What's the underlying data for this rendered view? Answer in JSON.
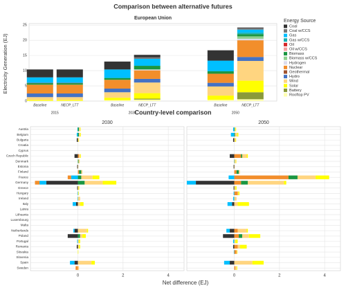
{
  "title": "Comparison between alternative futures",
  "chart_data": [
    {
      "type": "bar",
      "stacked": true,
      "title": "European Union",
      "ylabel": "Electricity Generation (EJ)",
      "legend_title": "Energy Source",
      "legend": "right",
      "grid": true,
      "groups": [
        2015,
        2030,
        2050
      ],
      "xlim": [
        2010,
        2058
      ],
      "categories": [
        "Baseline",
        "NECP_LTT",
        "Baseline",
        "NECP_LTT",
        "Baseline",
        "NECP_LTT"
      ],
      "ylim": [
        0,
        25.5
      ],
      "yticks": [
        0,
        5,
        10,
        15,
        20,
        25
      ],
      "series": [
        {
          "name": "Coal",
          "color": "#333333",
          "values": [
            2.6,
            2.6,
            2.6,
            0.8,
            3.4,
            0.2
          ]
        },
        {
          "name": "Coal w/CCS",
          "color": "#777777",
          "values": [
            0,
            0,
            0,
            0.5,
            0,
            0.5
          ]
        },
        {
          "name": "Gas",
          "color": "#00bfff",
          "values": [
            1.8,
            1.8,
            2.8,
            2.3,
            3.5,
            1.0
          ]
        },
        {
          "name": "Gas w/CCS",
          "color": "#1ab0b0",
          "values": [
            0,
            0,
            0,
            0,
            0,
            0.5
          ]
        },
        {
          "name": "Oil",
          "color": "#d62728",
          "values": [
            0.1,
            0.1,
            0,
            0,
            0,
            0
          ]
        },
        {
          "name": "Oil w/CCS",
          "color": "#f4a0a0",
          "values": [
            0,
            0,
            0,
            0,
            0,
            0
          ]
        },
        {
          "name": "Biomass",
          "color": "#1a9641",
          "values": [
            0.5,
            0.5,
            0.6,
            1.2,
            0.8,
            0.7
          ]
        },
        {
          "name": "Biomass w/CCS",
          "color": "#8fd18f",
          "values": [
            0,
            0,
            0,
            0,
            0,
            0.8
          ]
        },
        {
          "name": "Hydrogen",
          "color": "#dcdcec",
          "values": [
            0,
            0,
            0,
            0.3,
            0,
            0.5
          ]
        },
        {
          "name": "Nuclear",
          "color": "#f28e2b",
          "values": [
            2.9,
            2.9,
            2.9,
            2.8,
            3.0,
            5.5
          ]
        },
        {
          "name": "Geothermal",
          "color": "#a0522d",
          "values": [
            0,
            0,
            0,
            0,
            0,
            0
          ]
        },
        {
          "name": "Hydro",
          "color": "#4472c4",
          "values": [
            1.2,
            1.2,
            1.2,
            1.2,
            1.2,
            1.3
          ]
        },
        {
          "name": "Wind",
          "color": "#ffd580",
          "values": [
            0.9,
            0.9,
            1.8,
            3.5,
            3.0,
            6.5
          ]
        },
        {
          "name": "Solar",
          "color": "#ffff00",
          "values": [
            0.3,
            0.3,
            0.8,
            1.8,
            1.4,
            3.8
          ]
        },
        {
          "name": "Battery",
          "color": "#8a9a3a",
          "values": [
            0,
            0,
            0,
            0.3,
            0,
            2.3
          ]
        },
        {
          "name": "Rooftop PV",
          "color": "#ffffb0",
          "values": [
            0.1,
            0.1,
            0.3,
            0.5,
            0.4,
            0.6
          ]
        }
      ]
    },
    {
      "type": "bar",
      "orientation": "horizontal",
      "stacked": true,
      "title": "Country-level comparison",
      "xlabel": "Net difference (EJ)",
      "grid": true,
      "xlim": [
        -2.1,
        4.7
      ],
      "xticks": [
        0,
        2,
        4
      ],
      "categories": [
        "Austria",
        "Belgium",
        "Bulgaria",
        "Croatia",
        "Cyprus",
        "Czech Republic",
        "Denmark",
        "Estonia",
        "Finland",
        "France",
        "Germany",
        "Greece",
        "Hungary",
        "Ireland",
        "Italy",
        "Latvia",
        "Lithuania",
        "Luxembourg",
        "Malta",
        "Netherlands",
        "Poland",
        "Portugal",
        "Romania",
        "Slovakia",
        "Slovenia",
        "Spain",
        "Sweden"
      ],
      "facets": [
        {
          "title": "2030",
          "series": [
            {
              "color": "#333333",
              "values": [
                0,
                0,
                -0.05,
                0,
                0,
                -0.15,
                0,
                -0.03,
                0,
                0,
                -1.4,
                -0.03,
                0,
                0,
                -0.08,
                0,
                0,
                0,
                0,
                -0.15,
                -0.45,
                0,
                -0.05,
                0,
                0,
                -0.15,
                0
              ]
            },
            {
              "color": "#00bfff",
              "values": [
                -0.02,
                -0.05,
                0,
                0,
                0,
                0,
                0,
                0,
                0,
                -0.3,
                -0.3,
                0,
                -0.02,
                -0.02,
                -0.15,
                0,
                0,
                0,
                0,
                -0.05,
                0,
                -0.03,
                0,
                0,
                0,
                -0.2,
                0
              ]
            },
            {
              "color": "#f28e2b",
              "values": [
                0,
                0,
                0,
                0,
                0,
                0.05,
                0,
                0,
                0.05,
                -0.15,
                -0.2,
                0,
                0,
                0,
                0,
                0,
                0,
                0,
                0,
                0,
                0,
                0,
                0,
                0,
                0,
                0,
                -0.1
              ]
            },
            {
              "color": "#1a9641",
              "values": [
                0.05,
                0.05,
                0,
                0,
                0,
                0,
                0.03,
                0,
                0.1,
                0.15,
                0.3,
                0,
                0,
                0,
                0,
                0,
                0,
                0,
                0,
                0,
                0.1,
                0,
                0,
                0,
                0,
                0,
                0
              ]
            },
            {
              "color": "#ffd580",
              "values": [
                0.05,
                0.05,
                0.03,
                0,
                0,
                0.05,
                0.05,
                0.02,
                0.05,
                0.5,
                0.8,
                0.03,
                0.02,
                0.1,
                0.1,
                0,
                0,
                0,
                0,
                0.4,
                0.1,
                0.05,
                0.05,
                0,
                0,
                0.6,
                0.05
              ]
            },
            {
              "color": "#ffff00",
              "values": [
                0.02,
                0.03,
                0.02,
                0,
                0,
                0.03,
                0,
                0,
                0,
                0.3,
                0.6,
                0.03,
                0.02,
                0,
                0.15,
                0,
                0,
                0,
                0,
                0.05,
                0.15,
                0.05,
                0.05,
                0.02,
                0,
                0.15,
                0
              ]
            }
          ]
        },
        {
          "title": "2050",
          "series": [
            {
              "color": "#333333",
              "values": [
                0,
                0,
                -0.05,
                0,
                0,
                -0.2,
                0,
                -0.03,
                0,
                0,
                -1.7,
                -0.03,
                0,
                0,
                -0.1,
                0,
                0,
                0,
                0,
                -0.2,
                -0.5,
                0,
                -0.05,
                0,
                0,
                -0.2,
                0
              ]
            },
            {
              "color": "#00bfff",
              "values": [
                -0.05,
                -0.15,
                0,
                0,
                0,
                0,
                0,
                0,
                0,
                -0.25,
                -0.4,
                0,
                -0.03,
                -0.05,
                -0.2,
                0,
                0,
                0,
                0,
                -0.15,
                0,
                -0.05,
                0,
                -0.02,
                0,
                -0.25,
                0
              ]
            },
            {
              "color": "#f28e2b",
              "values": [
                0,
                0,
                0,
                0,
                0,
                0.3,
                0,
                0,
                0.1,
                2.4,
                0.3,
                0,
                0.15,
                0,
                0,
                0,
                0,
                0,
                0,
                0.15,
                0.2,
                0,
                0.15,
                0.1,
                0,
                0,
                0.05
              ]
            },
            {
              "color": "#1a9641",
              "values": [
                0.02,
                0.03,
                0,
                0,
                0,
                0.05,
                0.02,
                0,
                0.1,
                0.4,
                0.3,
                0,
                0,
                0,
                0,
                0,
                0,
                0,
                0,
                0,
                0.15,
                0,
                0,
                0,
                0,
                0,
                0
              ]
            },
            {
              "color": "#ffd580",
              "values": [
                0.03,
                0.1,
                0.05,
                0,
                0,
                0.2,
                0.05,
                0.02,
                0.05,
                0.8,
                1.6,
                0.05,
                0.03,
                0.1,
                0.15,
                0,
                0,
                0,
                0,
                0.4,
                0.3,
                0.05,
                0.1,
                0.02,
                0,
                0.8,
                0.05
              ]
            },
            {
              "color": "#ffff00",
              "values": [
                0.03,
                0.05,
                0.03,
                0,
                0,
                0.05,
                0.02,
                0,
                0,
                0.6,
                0.1,
                0.05,
                0.05,
                0,
                0.5,
                0,
                0,
                0,
                0,
                0.05,
                0.5,
                0.1,
                0.3,
                0.02,
                0,
                0.5,
                0.03
              ]
            }
          ]
        }
      ]
    }
  ]
}
